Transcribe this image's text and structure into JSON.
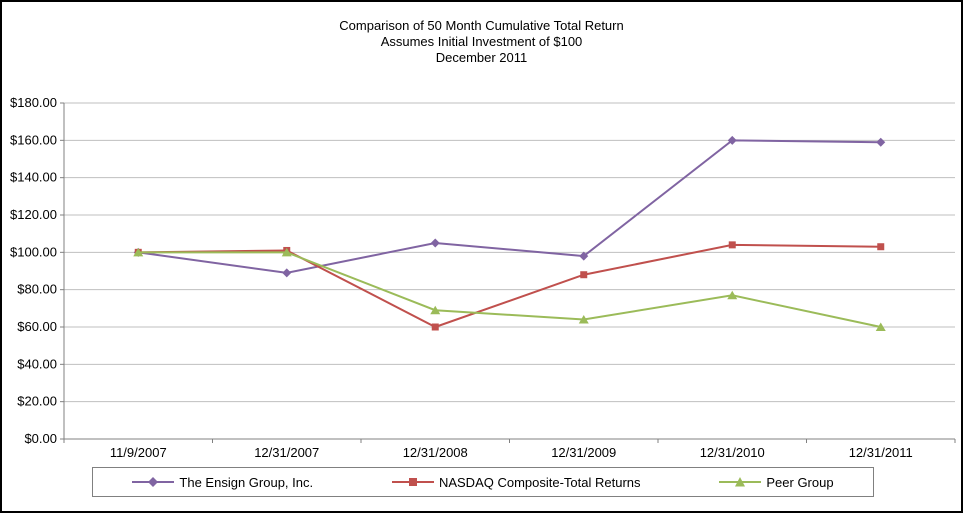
{
  "title": {
    "line1": "Comparison of 50 Month Cumulative Total Return",
    "line2": "Assumes Initial Investment of $100",
    "line3": "December 2011"
  },
  "chart_data": {
    "type": "line",
    "title": "Comparison of 50 Month Cumulative Total Return",
    "subtitle": "Assumes Initial Investment of $100",
    "period_label": "December 2011",
    "categories": [
      "11/9/2007",
      "12/31/2007",
      "12/31/2008",
      "12/31/2009",
      "12/31/2010",
      "12/31/2011"
    ],
    "series": [
      {
        "name": "The Ensign Group, Inc.",
        "color": "#8064A2",
        "marker": "diamond",
        "values": [
          100,
          89,
          105,
          98,
          160,
          159
        ]
      },
      {
        "name": "NASDAQ Composite-Total Returns",
        "color": "#C0504D",
        "marker": "square",
        "values": [
          100,
          101,
          60,
          88,
          104,
          103
        ]
      },
      {
        "name": "Peer Group",
        "color": "#9BBB59",
        "marker": "triangle",
        "values": [
          100,
          100,
          69,
          64,
          77,
          60
        ]
      }
    ],
    "ylim": [
      0,
      180
    ],
    "yticks": [
      {
        "value": 0,
        "label": "$0.00"
      },
      {
        "value": 20,
        "label": "$20.00"
      },
      {
        "value": 40,
        "label": "$40.00"
      },
      {
        "value": 60,
        "label": "$60.00"
      },
      {
        "value": 80,
        "label": "$80.00"
      },
      {
        "value": 100,
        "label": "$100.00"
      },
      {
        "value": 120,
        "label": "$120.00"
      },
      {
        "value": 140,
        "label": "$140.00"
      },
      {
        "value": 160,
        "label": "$160.00"
      },
      {
        "value": 180,
        "label": "$180.00"
      }
    ],
    "grid": true,
    "legend_position": "bottom",
    "axis_color": "#808080",
    "gridline_color": "#BFBFBF",
    "background": "#FFFFFF"
  }
}
